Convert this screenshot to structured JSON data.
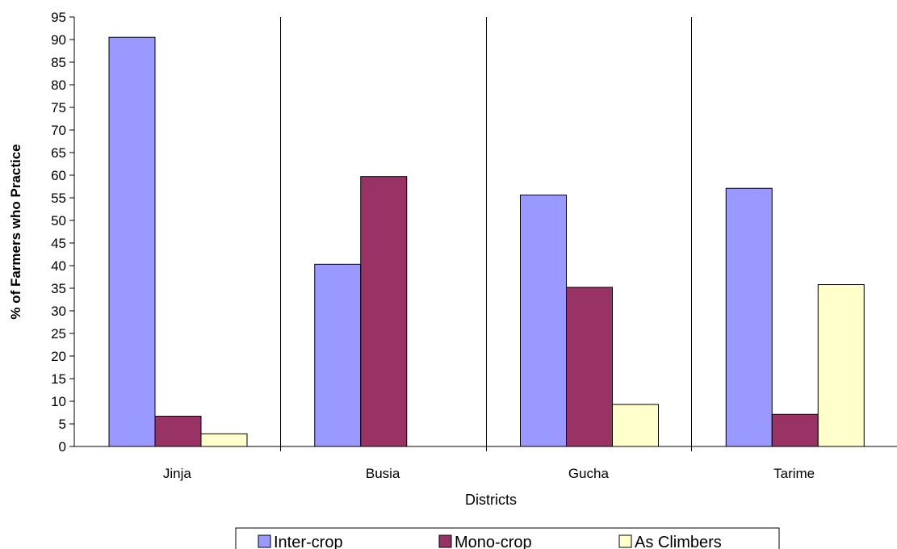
{
  "chart_data": {
    "type": "bar",
    "title": "",
    "xlabel": "Districts",
    "ylabel": "% of Farmers who Practice",
    "categories": [
      "Jinja",
      "Busia",
      "Gucha",
      "Tarime"
    ],
    "series": [
      {
        "name": "Inter-crop",
        "values": [
          90.5,
          40.3,
          55.6,
          57.1
        ],
        "color": "#9999ff"
      },
      {
        "name": "Mono-crop",
        "values": [
          6.7,
          59.7,
          35.2,
          7.1
        ],
        "color": "#993366"
      },
      {
        "name": "As Climbers",
        "values": [
          2.8,
          0,
          9.3,
          35.8
        ],
        "color": "#ffffcc"
      }
    ],
    "ylim": [
      0,
      95
    ],
    "ytick_step": 5,
    "yticks": [
      "0",
      "5",
      "10",
      "15",
      "20",
      "25",
      "30",
      "35",
      "40",
      "45",
      "50",
      "55",
      "60",
      "65",
      "70",
      "75",
      "80",
      "85",
      "90",
      "95"
    ],
    "grid": {
      "vertical_category_lines": true,
      "horizontal": false
    },
    "legend_position": "bottom"
  }
}
